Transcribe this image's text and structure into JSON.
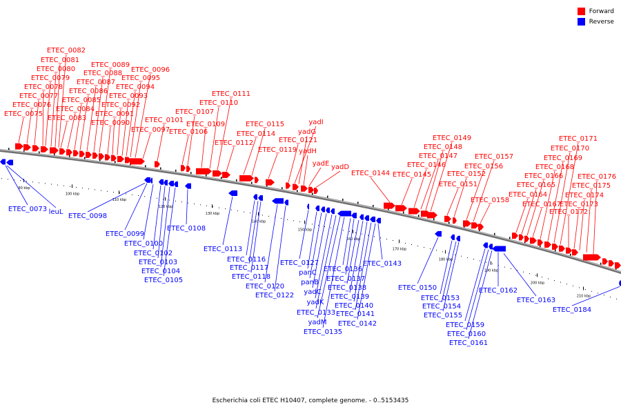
{
  "legend": {
    "forward_label": "Forward",
    "reverse_label": "Reverse",
    "forward_color": "#ff0000",
    "reverse_color": "#0000ff"
  },
  "caption": "Escherichia coli ETEC H10407, complete genome. - 0..5153435",
  "scale_labels": [
    "90 kbp",
    "100 kbp",
    "110 kbp",
    "120 kbp",
    "130 kbp",
    "140 kbp",
    "150 kbp",
    "160 kbp",
    "170 kbp",
    "180 kbp",
    "190 kbp",
    "200 kbp",
    "210 kbp"
  ],
  "forward_genes": [
    "ETEC_0075",
    "ETEC_0076",
    "ETEC_0077",
    "ETEC_0078",
    "ETEC_0079",
    "ETEC_0080",
    "ETEC_0081",
    "ETEC_0082",
    "ETEC_0083",
    "ETEC_0084",
    "ETEC_0085",
    "ETEC_0086",
    "ETEC_0087",
    "ETEC_0088",
    "ETEC_0089",
    "ETEC_0090",
    "ETEC_0091",
    "ETEC_0092",
    "ETEC_0093",
    "ETEC_0094",
    "ETEC_0095",
    "ETEC_0096",
    "ETEC_0097",
    "ETEC_0101",
    "ETEC_0106",
    "ETEC_0107",
    "ETEC_0109",
    "ETEC_0110",
    "ETEC_0111",
    "ETEC_0112",
    "ETEC_0114",
    "ETEC_0115",
    "ETEC_0119",
    "ETEC_0121",
    "yadI",
    "yadG",
    "yadH",
    "yadE",
    "yadD",
    "ETEC_0144",
    "ETEC_0145",
    "ETEC_0146",
    "ETEC_0147",
    "ETEC_0148",
    "ETEC_0149",
    "ETEC_0151",
    "ETEC_0152",
    "ETEC_0156",
    "ETEC_0157",
    "ETEC_0158",
    "ETEC_0164",
    "ETEC_0165",
    "ETEC_0166",
    "ETEC_0167",
    "ETEC_0168",
    "ETEC_0169",
    "ETEC_0170",
    "ETEC_0171",
    "ETEC_0172",
    "ETEC_0173",
    "ETEC_0174",
    "ETEC_0175",
    "ETEC_0176"
  ],
  "reverse_genes": [
    "ETEC_0073",
    "leuL",
    "ETEC_0098",
    "ETEC_0099",
    "ETEC_0100",
    "ETEC_0102",
    "ETEC_0103",
    "ETEC_0104",
    "ETEC_0105",
    "ETEC_0108",
    "ETEC_0113",
    "ETEC_0116",
    "ETEC_0117",
    "ETEC_0118",
    "ETEC_0120",
    "ETEC_0122",
    "ETEC_0127",
    "panC",
    "panB",
    "yadC",
    "yadK",
    "ETEC_0133",
    "yadM",
    "ETEC_0135",
    "ETEC_0136",
    "ETEC_0137",
    "ETEC_0138",
    "ETEC_0139",
    "ETEC_0140",
    "ETEC_0141",
    "ETEC_0142",
    "ETEC_0143",
    "ETEC_0150",
    "ETEC_0153",
    "ETEC_0154",
    "ETEC_0155",
    "ETEC_0159",
    "ETEC_0160",
    "ETEC_0161",
    "ETEC_0162",
    "ETEC_0163",
    "ETEC_0184"
  ]
}
